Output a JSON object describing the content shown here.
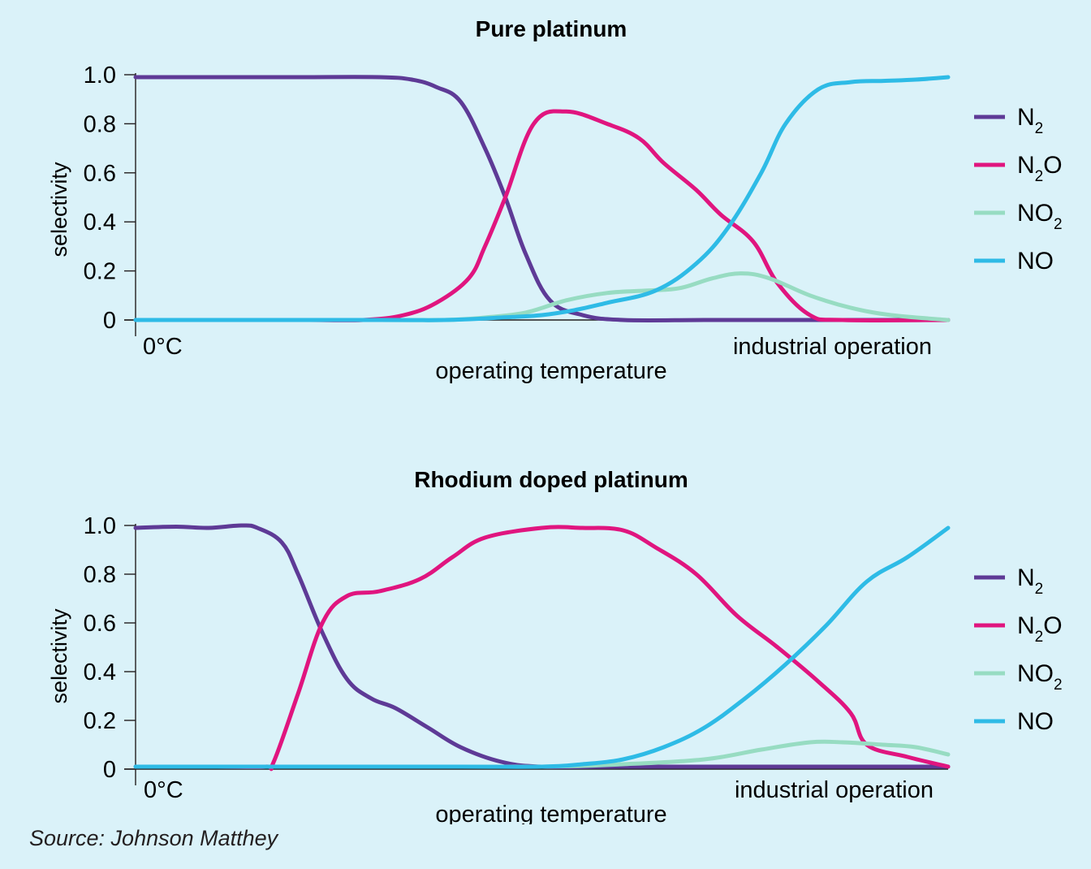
{
  "colors": {
    "N2": "#5e3a96",
    "N2O": "#e0157f",
    "NO2": "#97dcc2",
    "NO": "#2ebbe6",
    "background": "#daf2f9",
    "axis": "#231f20"
  },
  "source": "Source: Johnson Matthey",
  "chart_data": [
    {
      "type": "line",
      "title": "Pure platinum",
      "xlabel": "operating temperature",
      "ylabel": "selectivity",
      "x_tick_left": "0°C",
      "x_tick_right": "industrial operation",
      "ylim": [
        0,
        1
      ],
      "xlim": [
        0,
        1
      ],
      "y_ticks": [
        "0",
        "0.2",
        "0.4",
        "0.6",
        "0.8",
        "1.0"
      ],
      "legend_position": "right",
      "legend": [
        {
          "base": "N",
          "sub": "2",
          "tail": ""
        },
        {
          "base": "N",
          "sub": "2",
          "tail": "O"
        },
        {
          "base": "NO",
          "sub": "2",
          "tail": ""
        },
        {
          "base": "NO",
          "sub": "",
          "tail": ""
        }
      ],
      "series": [
        {
          "key": "N2",
          "points": [
            [
              0,
              0.99
            ],
            [
              0.1,
              0.99
            ],
            [
              0.2,
              0.99
            ],
            [
              0.3,
              0.99
            ],
            [
              0.34,
              0.98
            ],
            [
              0.37,
              0.95
            ],
            [
              0.4,
              0.89
            ],
            [
              0.43,
              0.7
            ],
            [
              0.455,
              0.5
            ],
            [
              0.48,
              0.27
            ],
            [
              0.51,
              0.08
            ],
            [
              0.55,
              0.02
            ],
            [
              0.6,
              0.0
            ],
            [
              0.7,
              0.0
            ],
            [
              0.8,
              0.0
            ],
            [
              0.9,
              0.0
            ],
            [
              1.0,
              0.0
            ]
          ]
        },
        {
          "key": "N2O",
          "points": [
            [
              0,
              0.0
            ],
            [
              0.2,
              0.0
            ],
            [
              0.28,
              0.0
            ],
            [
              0.33,
              0.02
            ],
            [
              0.37,
              0.07
            ],
            [
              0.41,
              0.17
            ],
            [
              0.43,
              0.3
            ],
            [
              0.455,
              0.5
            ],
            [
              0.49,
              0.8
            ],
            [
              0.53,
              0.85
            ],
            [
              0.58,
              0.8
            ],
            [
              0.62,
              0.74
            ],
            [
              0.65,
              0.64
            ],
            [
              0.69,
              0.53
            ],
            [
              0.72,
              0.43
            ],
            [
              0.76,
              0.32
            ],
            [
              0.79,
              0.15
            ],
            [
              0.83,
              0.02
            ],
            [
              0.87,
              0.0
            ],
            [
              1.0,
              0.0
            ]
          ]
        },
        {
          "key": "NO2",
          "points": [
            [
              0,
              0.0
            ],
            [
              0.3,
              0.0
            ],
            [
              0.38,
              0.0
            ],
            [
              0.43,
              0.01
            ],
            [
              0.48,
              0.03
            ],
            [
              0.53,
              0.08
            ],
            [
              0.58,
              0.11
            ],
            [
              0.63,
              0.12
            ],
            [
              0.67,
              0.13
            ],
            [
              0.71,
              0.17
            ],
            [
              0.745,
              0.19
            ],
            [
              0.78,
              0.17
            ],
            [
              0.83,
              0.1
            ],
            [
              0.88,
              0.05
            ],
            [
              0.93,
              0.02
            ],
            [
              1.0,
              0.0
            ]
          ]
        },
        {
          "key": "NO",
          "points": [
            [
              0,
              0.0
            ],
            [
              0.3,
              0.0
            ],
            [
              0.38,
              0.0
            ],
            [
              0.45,
              0.01
            ],
            [
              0.5,
              0.02
            ],
            [
              0.54,
              0.04
            ],
            [
              0.58,
              0.07
            ],
            [
              0.64,
              0.12
            ],
            [
              0.69,
              0.23
            ],
            [
              0.73,
              0.38
            ],
            [
              0.77,
              0.6
            ],
            [
              0.8,
              0.8
            ],
            [
              0.84,
              0.94
            ],
            [
              0.88,
              0.97
            ],
            [
              0.92,
              0.975
            ],
            [
              0.96,
              0.98
            ],
            [
              1.0,
              0.99
            ]
          ]
        }
      ]
    },
    {
      "type": "line",
      "title": "Rhodium doped platinum",
      "xlabel": "operating temperature",
      "ylabel": "selectivity",
      "x_tick_left": "0°C",
      "x_tick_right": "industrial operation",
      "ylim": [
        0,
        1
      ],
      "xlim": [
        0,
        1
      ],
      "y_ticks": [
        "0",
        "0.2",
        "0.4",
        "0.6",
        "0.8",
        "1.0"
      ],
      "legend_position": "right",
      "legend": [
        {
          "base": "N",
          "sub": "2",
          "tail": ""
        },
        {
          "base": "N",
          "sub": "2",
          "tail": "O"
        },
        {
          "base": "NO",
          "sub": "2",
          "tail": ""
        },
        {
          "base": "NO",
          "sub": "",
          "tail": ""
        }
      ],
      "series": [
        {
          "key": "N2",
          "points": [
            [
              0,
              0.99
            ],
            [
              0.05,
              0.995
            ],
            [
              0.09,
              0.99
            ],
            [
              0.13,
              1.0
            ],
            [
              0.15,
              0.99
            ],
            [
              0.18,
              0.93
            ],
            [
              0.2,
              0.8
            ],
            [
              0.23,
              0.56
            ],
            [
              0.26,
              0.37
            ],
            [
              0.29,
              0.29
            ],
            [
              0.32,
              0.25
            ],
            [
              0.36,
              0.17
            ],
            [
              0.4,
              0.09
            ],
            [
              0.45,
              0.03
            ],
            [
              0.5,
              0.01
            ],
            [
              0.6,
              0.01
            ],
            [
              0.7,
              0.01
            ],
            [
              0.8,
              0.01
            ],
            [
              0.9,
              0.01
            ],
            [
              1.0,
              0.01
            ]
          ]
        },
        {
          "key": "N2O",
          "points": [
            [
              0,
              0.01
            ],
            [
              0.1,
              0.01
            ],
            [
              0.16,
              0.01
            ],
            [
              0.17,
              0.03
            ],
            [
              0.2,
              0.31
            ],
            [
              0.23,
              0.6
            ],
            [
              0.26,
              0.71
            ],
            [
              0.3,
              0.73
            ],
            [
              0.35,
              0.78
            ],
            [
              0.39,
              0.87
            ],
            [
              0.43,
              0.95
            ],
            [
              0.5,
              0.99
            ],
            [
              0.55,
              0.99
            ],
            [
              0.6,
              0.98
            ],
            [
              0.64,
              0.91
            ],
            [
              0.69,
              0.8
            ],
            [
              0.74,
              0.63
            ],
            [
              0.79,
              0.5
            ],
            [
              0.84,
              0.36
            ],
            [
              0.88,
              0.23
            ],
            [
              0.9,
              0.1
            ],
            [
              0.95,
              0.05
            ],
            [
              1.0,
              0.01
            ]
          ]
        },
        {
          "key": "NO2",
          "points": [
            [
              0,
              0.01
            ],
            [
              0.3,
              0.01
            ],
            [
              0.5,
              0.01
            ],
            [
              0.6,
              0.02
            ],
            [
              0.7,
              0.04
            ],
            [
              0.77,
              0.08
            ],
            [
              0.83,
              0.11
            ],
            [
              0.87,
              0.11
            ],
            [
              0.92,
              0.1
            ],
            [
              0.96,
              0.09
            ],
            [
              1.0,
              0.06
            ]
          ]
        },
        {
          "key": "NO",
          "points": [
            [
              0,
              0.01
            ],
            [
              0.2,
              0.01
            ],
            [
              0.4,
              0.01
            ],
            [
              0.5,
              0.01
            ],
            [
              0.55,
              0.02
            ],
            [
              0.6,
              0.04
            ],
            [
              0.65,
              0.09
            ],
            [
              0.7,
              0.17
            ],
            [
              0.75,
              0.29
            ],
            [
              0.8,
              0.43
            ],
            [
              0.85,
              0.59
            ],
            [
              0.9,
              0.77
            ],
            [
              0.95,
              0.87
            ],
            [
              1.0,
              0.99
            ]
          ]
        }
      ]
    }
  ]
}
